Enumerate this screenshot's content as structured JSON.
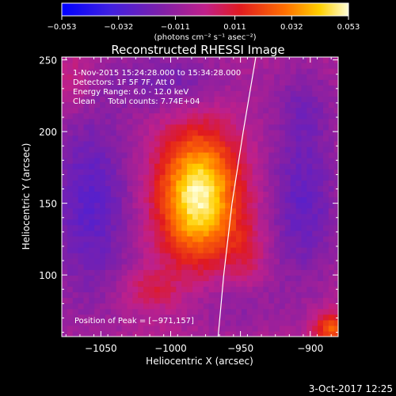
{
  "chart_data": {
    "type": "heatmap",
    "title": "Reconstructed RHESSI Image",
    "xlabel": "Heliocentric X (arcsec)",
    "ylabel": "Heliocentric Y (arcsec)",
    "xlim": [
      -1078,
      -880
    ],
    "ylim": [
      57,
      252
    ],
    "x_ticks": [
      -1050,
      -1000,
      -950,
      -900
    ],
    "x_tick_labels": [
      "−1050",
      "−1000",
      "−950",
      "−900"
    ],
    "y_ticks": [
      100,
      150,
      200,
      250
    ],
    "y_tick_labels": [
      "100",
      "150",
      "200",
      "250"
    ],
    "colorbar": {
      "range": [
        -0.053,
        0.053
      ],
      "ticks": [
        -0.053,
        -0.032,
        -0.011,
        0.011,
        0.032,
        0.053
      ],
      "tick_labels": [
        "−0.053",
        "−0.032",
        "−0.011",
        "0.011",
        "0.032",
        "0.053"
      ],
      "unit_label": "(photons cm⁻² s⁻¹ asec⁻²)"
    },
    "annotations": [
      "1-Nov-2015 15:24:28.000 to 15:34:28.000",
      "Detectors: 1F 5F 7F, Att 0",
      "Energy Range: 6.0 - 12.0 keV",
      "Clean     Total counts: 7.74E+04"
    ],
    "peak_label": "Position of Peak = [−971,157]",
    "peak": {
      "x": -971,
      "y": 157
    },
    "components": [
      {
        "x": -980,
        "y": 155,
        "amp": 0.056,
        "sx": 20,
        "sy": 31
      },
      {
        "x": -1058,
        "y": 150,
        "amp": -0.022,
        "sx": 22,
        "sy": 50
      },
      {
        "x": -905,
        "y": 150,
        "amp": -0.02,
        "sx": 18,
        "sy": 40
      },
      {
        "x": -1000,
        "y": 235,
        "amp": -0.015,
        "sx": 30,
        "sy": 15
      },
      {
        "x": -955,
        "y": 80,
        "amp": -0.01,
        "sx": 25,
        "sy": 15
      },
      {
        "x": -905,
        "y": 220,
        "amp": -0.01,
        "sx": 18,
        "sy": 22
      },
      {
        "x": -885,
        "y": 62,
        "amp": 0.03,
        "sx": 9,
        "sy": 9
      },
      {
        "x": -1015,
        "y": 90,
        "amp": 0.012,
        "sx": 15,
        "sy": 10
      },
      {
        "x": -1070,
        "y": 235,
        "amp": 0.01,
        "sx": 10,
        "sy": 15
      },
      {
        "x": -945,
        "y": 115,
        "amp": 0.01,
        "sx": 10,
        "sy": 18
      }
    ],
    "limb": [
      [
        -966,
        57
      ],
      [
        -962,
        100
      ],
      [
        -956,
        150
      ],
      [
        -948,
        200
      ],
      [
        -939,
        252
      ]
    ],
    "colors": {
      "background": "#000000",
      "axes": "#ffffff",
      "colormap": [
        "#0000ff",
        "#6020c0",
        "#c0208a",
        "#e01a20",
        "#ff7000",
        "#ffd000",
        "#ffffd8"
      ]
    }
  },
  "footer": {
    "date": "3-Oct-2017 12:25"
  }
}
